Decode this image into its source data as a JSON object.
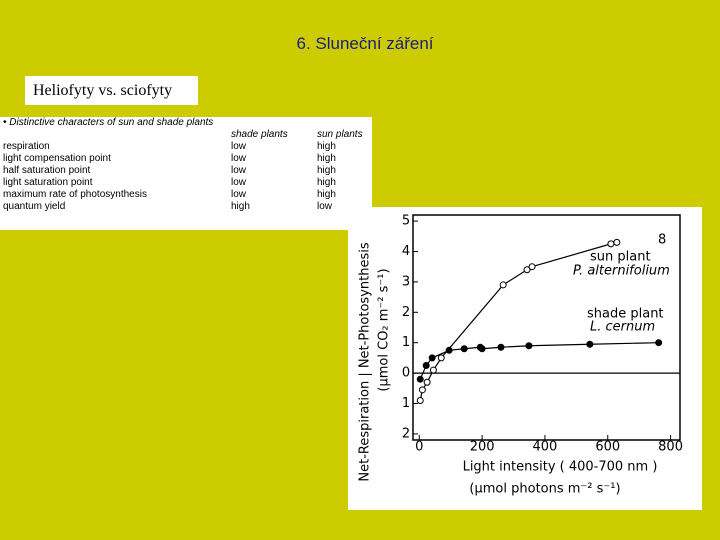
{
  "slide": {
    "title": "6. Sluneční záření",
    "label": "Heliofyty vs. sciofyty"
  },
  "table": {
    "caption": "Distinctive characters of sun and shade plants",
    "header": [
      "shade plants",
      "sun plants"
    ],
    "rows": [
      [
        "respiration",
        "low",
        "high"
      ],
      [
        "light compensation point",
        "low",
        "high"
      ],
      [
        "half saturation point",
        "low",
        "high"
      ],
      [
        "light saturation point",
        "low",
        "high"
      ],
      [
        "maximum rate of photosynthesis",
        "low",
        "high"
      ],
      [
        "quantum yield",
        "high",
        "low"
      ]
    ]
  },
  "chart_data": {
    "type": "scatter",
    "y_label": [
      "Net-Respiration | Net-Photosynthesis",
      "(μmol CO₂ m⁻² s⁻¹)"
    ],
    "x_label": [
      "Light intensity  ( 400-700 nm )",
      "(μmol photons m⁻² s⁻¹)"
    ],
    "xlim": [
      -20,
      830
    ],
    "ylim": [
      -2.2,
      5.2
    ],
    "xticks": [
      0,
      200,
      400,
      600,
      800
    ],
    "yticks": [
      {
        "value": -2,
        "label": "2"
      },
      {
        "value": -1,
        "label": "1"
      },
      0,
      1,
      2,
      3,
      4,
      5
    ],
    "annotations": [
      "P. alternifolium",
      "L. cernum",
      "8"
    ],
    "series": [
      {
        "name": "sun plant",
        "marker": "open",
        "color": "#000000",
        "x": [
          3,
          10,
          25,
          45,
          70,
          267,
          343,
          359,
          610,
          629
        ],
        "values": [
          -0.9,
          -0.55,
          -0.3,
          0.1,
          0.5,
          2.9,
          3.4,
          3.5,
          4.25,
          4.3
        ]
      },
      {
        "name": "shade plant",
        "marker": "filled",
        "color": "#000000",
        "x": [
          3,
          22,
          41,
          95,
          143,
          194,
          200,
          260,
          349,
          543,
          762
        ],
        "values": [
          -0.2,
          0.25,
          0.5,
          0.75,
          0.8,
          0.85,
          0.8,
          0.85,
          0.9,
          0.95,
          1.0
        ]
      }
    ]
  }
}
